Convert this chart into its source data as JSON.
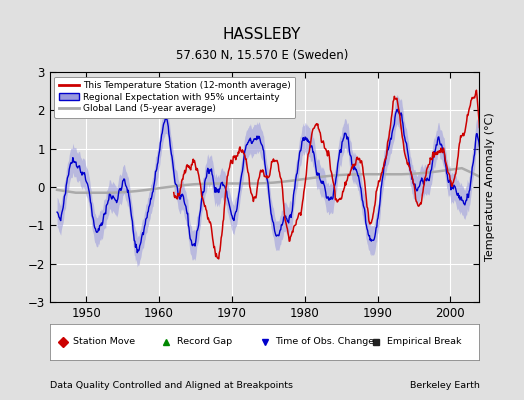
{
  "title": "HASSLEBY",
  "subtitle": "57.630 N, 15.570 E (Sweden)",
  "ylabel": "Temperature Anomaly (°C)",
  "xlabel_footer": "Data Quality Controlled and Aligned at Breakpoints",
  "footer_right": "Berkeley Earth",
  "xlim": [
    1945,
    2004
  ],
  "ylim": [
    -3,
    3
  ],
  "yticks": [
    -3,
    -2,
    -1,
    0,
    1,
    2,
    3
  ],
  "xticks": [
    1950,
    1960,
    1970,
    1980,
    1990,
    2000
  ],
  "bg_color": "#e0e0e0",
  "plot_bg_color": "#e0e0e0",
  "legend_station": "This Temperature Station (12-month average)",
  "legend_regional": "Regional Expectation with 95% uncertainty",
  "legend_global": "Global Land (5-year average)",
  "station_color": "#cc0000",
  "regional_color": "#0000cc",
  "regional_fill_color": "#9999dd",
  "global_color": "#aaaaaa",
  "seed": 42,
  "start_year": 1946,
  "end_year": 2004,
  "station_start_year": 1962
}
